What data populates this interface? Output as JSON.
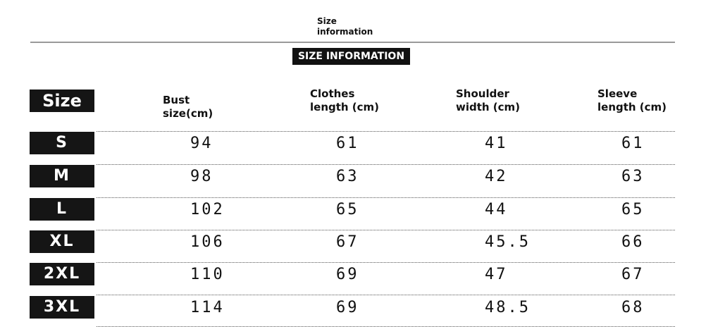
{
  "header": {
    "title": "Size information",
    "banner": "SIZE INFORMATION"
  },
  "table": {
    "columns": [
      "Size",
      "Bust size(cm)",
      "Clothes length (cm)",
      "Shoulder width (cm)",
      "Sleeve length (cm)"
    ],
    "rows": [
      [
        "S",
        "94",
        "61",
        "41",
        "61"
      ],
      [
        "M",
        "98",
        "63",
        "42",
        "63"
      ],
      [
        "L",
        "102",
        "65",
        "44",
        "65"
      ],
      [
        "XL",
        "106",
        "67",
        "45.5",
        "66"
      ],
      [
        "2XL",
        "110",
        "69",
        "47",
        "67"
      ],
      [
        "3XL",
        "114",
        "69",
        "48.5",
        "68"
      ]
    ]
  }
}
